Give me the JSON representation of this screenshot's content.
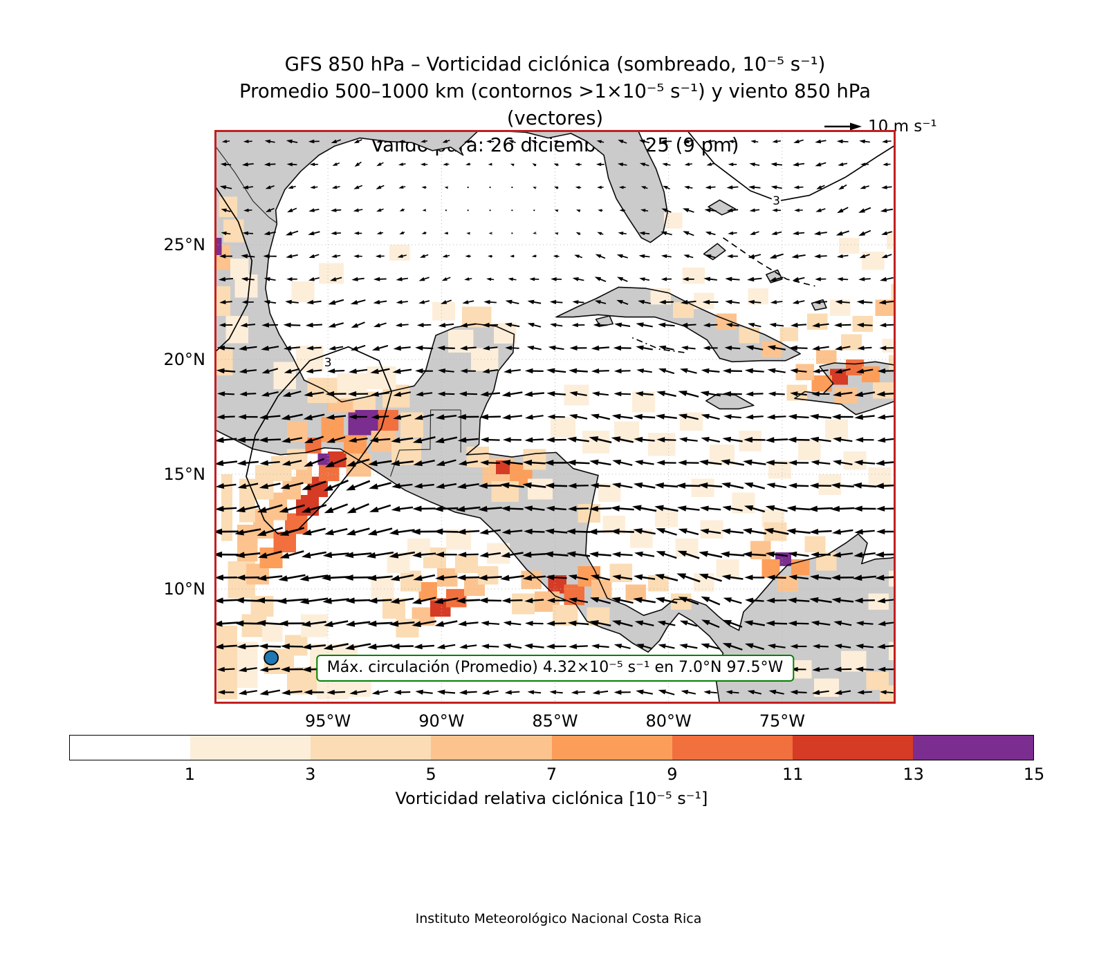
{
  "title": {
    "line1": "GFS 850 hPa – Vorticidad ciclónica (sombreado, 10⁻⁵ s⁻¹)",
    "line2": "Promedio 500–1000 km (contornos >1×10⁻⁵ s⁻¹) y viento 850 hPa (vectores)",
    "line3": "Válido para: 26 diciembre 2025 (9 pm)"
  },
  "reference_vector": {
    "label": "10 m s⁻¹"
  },
  "annotation": {
    "text": "Máx. circulación (Promedio) 4.32×10⁻⁵ s⁻¹ en 7.0°N 97.5°W"
  },
  "footer": "Instituto Meteorológico Nacional Costa Rica",
  "colors": {
    "plot_border": "#c21f1f",
    "land": "#cbcbcb",
    "coastline": "#0a0a0a",
    "border_line": "#222222",
    "gridline": "#b5b5b5",
    "annotation_border": "#008000",
    "marker_fill": "#1f77b4",
    "arrow": "#000000",
    "contour": "#000000"
  },
  "chart_data": {
    "type": "heatmap",
    "title": "GFS 850 hPa – Vorticidad ciclónica (sombreado, 10⁻⁵ s⁻¹)",
    "subtitle": "Promedio 500–1000 km (contornos >1×10⁻⁵ s⁻¹) y viento 850 hPa (vectores)",
    "valid_time": "Válido para: 26 diciembre 2025 (9 pm)",
    "extent": {
      "lon_west_deg_w": 100,
      "lon_east_deg_w": 70,
      "lat_south": 5,
      "lat_north": 30
    },
    "x_ticks": [
      {
        "value_deg_w": 95,
        "label": "95°W"
      },
      {
        "value_deg_w": 90,
        "label": "90°W"
      },
      {
        "value_deg_w": 85,
        "label": "85°W"
      },
      {
        "value_deg_w": 80,
        "label": "80°W"
      },
      {
        "value_deg_w": 75,
        "label": "75°W"
      }
    ],
    "y_ticks": [
      {
        "value_deg_n": 25,
        "label": "25°N"
      },
      {
        "value_deg_n": 20,
        "label": "20°N"
      },
      {
        "value_deg_n": 15,
        "label": "15°N"
      },
      {
        "value_deg_n": 10,
        "label": "10°N"
      }
    ],
    "colorbar": {
      "label": "Vorticidad relativa ciclónica [10⁻⁵ s⁻¹]",
      "boundaries": [
        0,
        1,
        3,
        5,
        7,
        9,
        11,
        13,
        15
      ],
      "tick_labels": [
        "1",
        "3",
        "5",
        "7",
        "9",
        "11",
        "13",
        "15"
      ],
      "colors": [
        "#ffffff",
        "#fdeeda",
        "#fbdcb4",
        "#fdc38e",
        "#fc9e5a",
        "#f1703e",
        "#d63b25",
        "#7b2d90"
      ]
    },
    "contour_label": "3",
    "max_circulation": {
      "value_label": "4.32×10⁻⁵ s⁻¹",
      "lat_deg_n": 7.0,
      "lon_deg_w": 97.5
    },
    "wind_reference": {
      "speed_label": "10 m s⁻¹",
      "speed_ms": 10
    },
    "vorticity_patches_deg": [
      [
        99.4,
        9.6,
        1.2,
        1.6,
        2
      ],
      [
        98.6,
        10.2,
        1.0,
        0.9,
        3
      ],
      [
        98.0,
        10.9,
        1.0,
        0.9,
        4
      ],
      [
        97.4,
        11.6,
        1.0,
        0.9,
        5
      ],
      [
        96.9,
        12.4,
        1.0,
        0.9,
        5
      ],
      [
        96.4,
        13.2,
        1.0,
        0.9,
        6
      ],
      [
        95.9,
        14.0,
        0.9,
        0.9,
        6
      ],
      [
        95.4,
        14.7,
        0.9,
        0.8,
        5
      ],
      [
        95.0,
        15.3,
        0.8,
        0.7,
        6
      ],
      [
        99.0,
        11.2,
        0.9,
        1.6,
        3
      ],
      [
        98.3,
        12.2,
        0.9,
        1.3,
        3
      ],
      [
        97.6,
        13.0,
        0.8,
        1.2,
        3
      ],
      [
        97.0,
        13.9,
        0.8,
        1.0,
        3
      ],
      [
        96.4,
        14.6,
        0.7,
        0.9,
        3
      ],
      [
        98.9,
        12.9,
        0.7,
        1.9,
        2
      ],
      [
        98.2,
        13.9,
        0.8,
        1.5,
        2
      ],
      [
        97.5,
        14.7,
        0.9,
        1.1,
        2
      ],
      [
        96.8,
        15.2,
        0.9,
        0.9,
        2
      ],
      [
        99.7,
        12.1,
        0.5,
        2.9,
        2
      ],
      [
        99.9,
        5.2,
        0.9,
        3.2,
        2
      ],
      [
        99.0,
        5.7,
        0.9,
        2.0,
        1
      ],
      [
        98.8,
        7.9,
        1.1,
        1.0,
        2
      ],
      [
        97.8,
        6.3,
        1.3,
        1.1,
        2
      ],
      [
        96.8,
        5.4,
        1.5,
        1.2,
        2
      ],
      [
        95.5,
        5.2,
        1.4,
        1.0,
        1
      ],
      [
        96.9,
        7.1,
        1.0,
        0.9,
        2
      ],
      [
        95.8,
        6.6,
        1.2,
        1.0,
        1
      ],
      [
        94.3,
        5.3,
        1.2,
        0.8,
        1
      ],
      [
        97.9,
        7.7,
        0.9,
        0.8,
        1
      ],
      [
        96.2,
        7.9,
        1.2,
        1.0,
        1
      ],
      [
        94.8,
        6.7,
        1.1,
        0.9,
        1
      ],
      [
        98.4,
        8.8,
        1.0,
        0.9,
        2
      ],
      [
        94.1,
        16.7,
        1.3,
        1.1,
        7
      ],
      [
        92.8,
        16.9,
        0.9,
        0.9,
        5
      ],
      [
        94.3,
        15.9,
        1.0,
        0.8,
        4
      ],
      [
        93.1,
        16.0,
        1.1,
        0.9,
        3
      ],
      [
        95.3,
        16.4,
        1.0,
        1.1,
        4
      ],
      [
        95.0,
        17.7,
        1.2,
        0.9,
        3
      ],
      [
        93.9,
        17.8,
        1.0,
        0.8,
        2
      ],
      [
        92.6,
        17.9,
        1.2,
        1.0,
        2
      ],
      [
        91.8,
        16.6,
        1.0,
        1.1,
        2
      ],
      [
        92.2,
        15.4,
        1.3,
        1.1,
        2
      ],
      [
        94.2,
        14.9,
        1.1,
        1.0,
        3
      ],
      [
        95.45,
        15.4,
        0.5,
        0.5,
        7
      ],
      [
        96.0,
        15.9,
        0.7,
        0.7,
        5
      ],
      [
        96.8,
        16.4,
        0.9,
        0.9,
        3
      ],
      [
        95.9,
        18.1,
        1.3,
        1.1,
        2
      ],
      [
        94.6,
        18.3,
        1.3,
        1.1,
        1
      ],
      [
        96.4,
        19.5,
        1.2,
        1.1,
        1
      ],
      [
        97.4,
        18.7,
        1.0,
        1.2,
        1
      ],
      [
        93.3,
        18.7,
        1.3,
        1.0,
        1
      ],
      [
        92.3,
        24.3,
        0.9,
        0.7,
        1
      ],
      [
        95.4,
        23.3,
        1.1,
        0.9,
        1
      ],
      [
        96.6,
        22.5,
        1.0,
        0.9,
        1
      ],
      [
        100,
        19.3,
        0.8,
        1.2,
        2
      ],
      [
        99.5,
        20.7,
        1.0,
        1.2,
        1
      ],
      [
        100,
        21.9,
        0.7,
        1.3,
        2
      ],
      [
        99.1,
        22.7,
        1.0,
        1.0,
        1
      ],
      [
        100,
        23.9,
        0.7,
        1.1,
        3
      ],
      [
        99.6,
        25.1,
        0.9,
        1.0,
        2
      ],
      [
        100,
        24.55,
        0.32,
        0.75,
        7
      ],
      [
        99.3,
        23.5,
        0.8,
        0.9,
        1
      ],
      [
        99.8,
        26.2,
        0.8,
        0.9,
        2
      ],
      [
        89.7,
        20.3,
        1.1,
        1.0,
        1
      ],
      [
        88.7,
        19.5,
        1.2,
        1.0,
        1
      ],
      [
        89.1,
        21.4,
        1.3,
        0.9,
        2
      ],
      [
        87.7,
        20.7,
        1.0,
        0.9,
        1
      ],
      [
        90.4,
        21.7,
        1.0,
        0.8,
        1
      ],
      [
        88.2,
        14.6,
        1.4,
        1.1,
        3
      ],
      [
        87.6,
        15.0,
        0.6,
        0.6,
        6
      ],
      [
        87.0,
        14.5,
        1.0,
        1.0,
        4
      ],
      [
        88.9,
        15.3,
        1.0,
        0.9,
        2
      ],
      [
        86.4,
        15.2,
        1.0,
        0.9,
        2
      ],
      [
        87.8,
        13.8,
        1.2,
        0.9,
        2
      ],
      [
        86.2,
        13.9,
        1.1,
        0.9,
        1
      ],
      [
        85.2,
        16.6,
        1.1,
        0.9,
        1
      ],
      [
        83.8,
        15.9,
        1.2,
        1.0,
        1
      ],
      [
        82.4,
        16.4,
        1.1,
        0.9,
        1
      ],
      [
        80.9,
        15.8,
        1.2,
        1.0,
        1
      ],
      [
        84.6,
        18.0,
        1.1,
        0.9,
        1
      ],
      [
        79.5,
        16.9,
        1.0,
        0.8,
        1
      ],
      [
        78.2,
        15.4,
        1.1,
        0.9,
        1
      ],
      [
        81.6,
        17.7,
        1.0,
        0.9,
        1
      ],
      [
        76.9,
        16.0,
        1.0,
        0.9,
        1
      ],
      [
        75.6,
        14.8,
        1.0,
        0.8,
        1
      ],
      [
        74.3,
        15.6,
        1.0,
        0.9,
        1
      ],
      [
        79.0,
        14.0,
        1.0,
        0.8,
        1
      ],
      [
        77.2,
        13.3,
        1.0,
        0.9,
        1
      ],
      [
        75.9,
        12.7,
        1.0,
        0.8,
        1
      ],
      [
        73.4,
        14.1,
        1.0,
        0.9,
        1
      ],
      [
        72.3,
        15.2,
        1.0,
        0.8,
        1
      ],
      [
        71.2,
        14.4,
        1.0,
        0.9,
        1
      ],
      [
        73.1,
        16.5,
        1.0,
        0.9,
        1
      ],
      [
        82.9,
        12.4,
        1.0,
        0.8,
        1
      ],
      [
        81.7,
        11.8,
        1.0,
        0.8,
        1
      ],
      [
        80.6,
        12.7,
        1.0,
        0.8,
        1
      ],
      [
        84.0,
        12.9,
        1.0,
        0.8,
        2
      ],
      [
        83.1,
        13.8,
        1.0,
        0.8,
        1
      ],
      [
        79.7,
        11.4,
        1.0,
        0.8,
        1
      ],
      [
        78.6,
        12.2,
        1.0,
        0.8,
        1
      ],
      [
        85.3,
        9.8,
        0.8,
        0.8,
        6
      ],
      [
        84.6,
        9.3,
        0.9,
        0.9,
        5
      ],
      [
        85.9,
        9.0,
        1.1,
        0.9,
        3
      ],
      [
        84.0,
        10.1,
        1.0,
        0.9,
        4
      ],
      [
        86.5,
        10.0,
        0.9,
        0.8,
        3
      ],
      [
        83.4,
        9.6,
        0.9,
        0.8,
        3
      ],
      [
        85.1,
        8.4,
        1.1,
        0.9,
        2
      ],
      [
        83.6,
        8.4,
        1.0,
        0.8,
        2
      ],
      [
        86.9,
        8.9,
        1.0,
        0.9,
        2
      ],
      [
        82.6,
        10.3,
        1.0,
        0.8,
        2
      ],
      [
        91.3,
        8.4,
        1.0,
        0.8,
        3
      ],
      [
        90.5,
        8.8,
        0.9,
        0.8,
        6
      ],
      [
        89.8,
        9.2,
        0.9,
        0.8,
        5
      ],
      [
        89.0,
        9.7,
        0.9,
        0.8,
        3
      ],
      [
        92.0,
        7.9,
        1.0,
        0.8,
        2
      ],
      [
        88.4,
        10.2,
        0.9,
        0.8,
        2
      ],
      [
        91.0,
        9.5,
        0.8,
        0.8,
        4
      ],
      [
        90.2,
        10.1,
        0.9,
        0.8,
        3
      ],
      [
        92.6,
        8.7,
        1.0,
        0.9,
        2
      ],
      [
        89.4,
        10.7,
        1.0,
        0.8,
        2
      ],
      [
        91.8,
        9.9,
        0.9,
        0.9,
        2
      ],
      [
        93.1,
        9.6,
        1.0,
        0.9,
        1
      ],
      [
        88.0,
        11.1,
        1.0,
        0.9,
        1
      ],
      [
        90.8,
        10.9,
        1.0,
        0.9,
        2
      ],
      [
        92.4,
        10.7,
        1.0,
        0.9,
        1
      ],
      [
        89.8,
        11.7,
        1.1,
        0.9,
        1
      ],
      [
        91.5,
        11.4,
        1.0,
        0.8,
        1
      ],
      [
        81.9,
        9.5,
        0.9,
        0.7,
        3
      ],
      [
        80.9,
        9.9,
        0.9,
        0.7,
        2
      ],
      [
        79.9,
        9.1,
        0.9,
        0.7,
        2
      ],
      [
        78.9,
        9.9,
        0.9,
        0.8,
        1
      ],
      [
        77.9,
        10.5,
        1.0,
        0.8,
        1
      ],
      [
        75.3,
        11.0,
        0.7,
        0.6,
        7
      ],
      [
        75.9,
        10.5,
        0.8,
        0.8,
        4
      ],
      [
        74.6,
        10.6,
        0.8,
        0.7,
        4
      ],
      [
        75.2,
        9.9,
        0.9,
        0.7,
        3
      ],
      [
        76.4,
        11.3,
        0.9,
        0.8,
        3
      ],
      [
        74.0,
        11.6,
        0.9,
        0.7,
        2
      ],
      [
        75.8,
        12.1,
        1.0,
        0.8,
        2
      ],
      [
        73.5,
        10.8,
        0.9,
        0.8,
        2
      ],
      [
        72.9,
        18.9,
        0.8,
        0.7,
        6
      ],
      [
        72.2,
        19.3,
        0.8,
        0.7,
        5
      ],
      [
        73.7,
        18.6,
        0.9,
        0.7,
        4
      ],
      [
        71.5,
        19.0,
        0.8,
        0.7,
        4
      ],
      [
        72.7,
        18.1,
        1.0,
        0.7,
        3
      ],
      [
        74.4,
        19.1,
        0.8,
        0.7,
        3
      ],
      [
        71.0,
        18.3,
        0.9,
        0.7,
        2
      ],
      [
        73.5,
        19.8,
        0.9,
        0.6,
        3
      ],
      [
        72.4,
        20.4,
        0.9,
        0.7,
        2
      ],
      [
        70.3,
        19.5,
        0.8,
        0.7,
        2
      ],
      [
        74.8,
        18.2,
        0.9,
        0.7,
        2
      ],
      [
        70.6,
        20.3,
        0.8,
        0.6,
        1
      ],
      [
        79.8,
        21.8,
        0.9,
        0.7,
        2
      ],
      [
        78.9,
        22.2,
        0.9,
        0.7,
        1
      ],
      [
        77.9,
        21.3,
        0.9,
        0.7,
        3
      ],
      [
        76.9,
        20.7,
        0.9,
        0.7,
        2
      ],
      [
        75.9,
        20.1,
        0.9,
        0.7,
        3
      ],
      [
        75.1,
        20.8,
        0.8,
        0.6,
        2
      ],
      [
        80.8,
        22.4,
        0.9,
        0.7,
        1
      ],
      [
        79.4,
        23.3,
        1.0,
        0.7,
        1
      ],
      [
        76.5,
        22.4,
        0.9,
        0.7,
        1
      ],
      [
        73.9,
        21.3,
        0.9,
        0.7,
        2
      ],
      [
        72.9,
        21.9,
        0.9,
        0.7,
        1
      ],
      [
        71.9,
        21.2,
        0.9,
        0.7,
        2
      ],
      [
        70.9,
        21.9,
        0.9,
        0.7,
        3
      ],
      [
        70.2,
        22.6,
        0.8,
        0.7,
        2
      ],
      [
        71.5,
        23.9,
        1.0,
        0.8,
        1
      ],
      [
        70.4,
        24.8,
        0.9,
        0.8,
        1
      ],
      [
        72.5,
        24.6,
        0.9,
        0.7,
        1
      ],
      [
        80.2,
        25.7,
        0.8,
        0.7,
        1
      ],
      [
        72.4,
        6.4,
        1.1,
        0.9,
        1
      ],
      [
        71.3,
        5.6,
        1.0,
        0.8,
        2
      ],
      [
        73.6,
        5.3,
        1.1,
        0.8,
        1
      ],
      [
        70.3,
        6.9,
        0.9,
        0.8,
        1
      ],
      [
        74.7,
        6.1,
        1.0,
        0.8,
        1
      ],
      [
        70.7,
        5.1,
        1.0,
        0.7,
        2
      ],
      [
        71.2,
        9.1,
        0.9,
        0.7,
        1
      ],
      [
        70.3,
        10.1,
        0.9,
        0.7,
        1
      ]
    ]
  }
}
